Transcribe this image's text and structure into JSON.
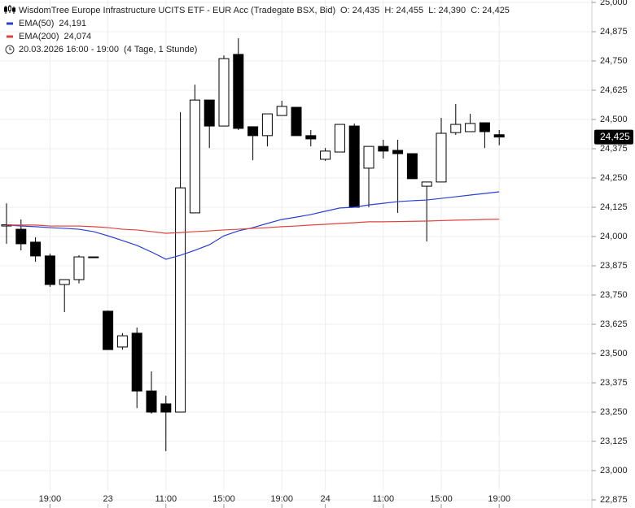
{
  "chart_data": {
    "type": "candlestick",
    "title": "WisdomTree Europe Infrastructure UCITS ETF - EUR Acc (Tradegate BSX, Bid)",
    "info": "O: 24,435  H: 24,455  L: 24,390  C: 24,425",
    "period": "20.03.2026 16:00 - 19:00  (4 Tage, 1 Stunde)",
    "categories": [
      null,
      null,
      null,
      "19:00",
      null,
      null,
      null,
      "23",
      null,
      null,
      null,
      "11:00",
      null,
      null,
      null,
      "15:00",
      null,
      null,
      null,
      "19:00",
      null,
      null,
      "24",
      null,
      null,
      null,
      "11:00",
      null,
      null,
      null,
      "15:00",
      null,
      null,
      null,
      "19:00"
    ],
    "open": [
      24.045,
      24.031,
      23.976,
      23.917,
      23.795,
      23.816,
      23.913,
      23.681,
      23.528,
      23.587,
      23.34,
      23.285,
      23.25,
      24.101,
      24.583,
      24.472,
      24.778,
      24.469,
      24.431,
      24.517,
      24.552,
      24.431,
      24.33,
      24.361,
      24.472,
      24.292,
      24.385,
      24.368,
      24.354,
      24.215,
      24.233,
      24.444,
      24.448,
      24.486,
      24.435
    ],
    "high": [
      24.142,
      24.073,
      23.997,
      23.927,
      23.816,
      23.92,
      23.913,
      23.684,
      23.587,
      23.611,
      23.424,
      23.32,
      24.531,
      24.649,
      24.583,
      24.774,
      24.847,
      24.469,
      24.524,
      24.58,
      24.552,
      24.455,
      24.378,
      24.479,
      24.483,
      24.385,
      24.413,
      24.413,
      24.354,
      24.233,
      24.507,
      24.566,
      24.524,
      24.486,
      24.455
    ],
    "low": [
      23.969,
      23.941,
      23.892,
      23.785,
      23.677,
      23.8,
      23.913,
      23.517,
      23.517,
      23.267,
      23.243,
      23.083,
      23.25,
      24.101,
      24.378,
      24.472,
      24.455,
      24.326,
      24.385,
      24.517,
      24.431,
      24.385,
      24.323,
      24.361,
      24.125,
      24.125,
      24.333,
      24.101,
      24.247,
      23.979,
      24.233,
      24.434,
      24.448,
      24.378,
      24.39
    ],
    "close": [
      24.05,
      23.969,
      23.917,
      23.795,
      23.816,
      23.913,
      23.913,
      23.517,
      23.576,
      23.34,
      23.25,
      23.25,
      24.208,
      24.583,
      24.472,
      24.76,
      24.462,
      24.431,
      24.524,
      24.556,
      24.431,
      24.417,
      24.365,
      24.479,
      24.125,
      24.385,
      24.365,
      24.354,
      24.247,
      24.233,
      24.441,
      24.479,
      24.483,
      24.448,
      24.425
    ],
    "up_color": "#ffffff",
    "down_color": "#000000",
    "series": [
      {
        "name": "EMA(50)",
        "value_label": "24,191",
        "color": "#2a3fd6",
        "values": [
          24.049,
          24.045,
          24.042,
          24.038,
          24.035,
          24.031,
          24.021,
          24.003,
          23.983,
          23.962,
          23.934,
          23.903,
          23.92,
          23.941,
          23.965,
          24.003,
          24.024,
          24.038,
          24.056,
          24.073,
          24.083,
          24.094,
          24.108,
          24.122,
          24.125,
          24.135,
          24.142,
          24.149,
          24.153,
          24.156,
          24.163,
          24.17,
          24.177,
          24.184,
          24.191
        ]
      },
      {
        "name": "EMA(200)",
        "value_label": "24,074",
        "color": "#e0413a",
        "values": [
          24.049,
          24.049,
          24.049,
          24.045,
          24.045,
          24.045,
          24.042,
          24.038,
          24.031,
          24.028,
          24.021,
          24.014,
          24.017,
          24.021,
          24.024,
          24.028,
          24.031,
          24.035,
          24.038,
          24.042,
          24.045,
          24.049,
          24.052,
          24.056,
          24.059,
          24.063,
          24.063,
          24.064,
          24.065,
          24.066,
          24.068,
          24.07,
          24.071,
          24.073,
          24.074
        ]
      }
    ],
    "last_price": {
      "value": 24.425,
      "label": "24,425"
    },
    "ylim": [
      22.875,
      25.0
    ],
    "yticks": [
      {
        "value": 22.875,
        "label": "22,875"
      },
      {
        "value": 23.0,
        "label": "23,000"
      },
      {
        "value": 23.125,
        "label": "23,125"
      },
      {
        "value": 23.25,
        "label": "23,250"
      },
      {
        "value": 23.375,
        "label": "23,375"
      },
      {
        "value": 23.5,
        "label": "23,500"
      },
      {
        "value": 23.625,
        "label": "23,625"
      },
      {
        "value": 23.75,
        "label": "23,750"
      },
      {
        "value": 23.875,
        "label": "23,875"
      },
      {
        "value": 24.0,
        "label": "24,000"
      },
      {
        "value": 24.125,
        "label": "24,125"
      },
      {
        "value": 24.25,
        "label": "24,250"
      },
      {
        "value": 24.375,
        "label": "24,375"
      },
      {
        "value": 24.5,
        "label": "24,500"
      },
      {
        "value": 24.625,
        "label": "24,625"
      },
      {
        "value": 24.75,
        "label": "24,750"
      },
      {
        "value": 24.875,
        "label": "24,875"
      },
      {
        "value": 25.0,
        "label": "25,000"
      }
    ],
    "grid": true
  }
}
